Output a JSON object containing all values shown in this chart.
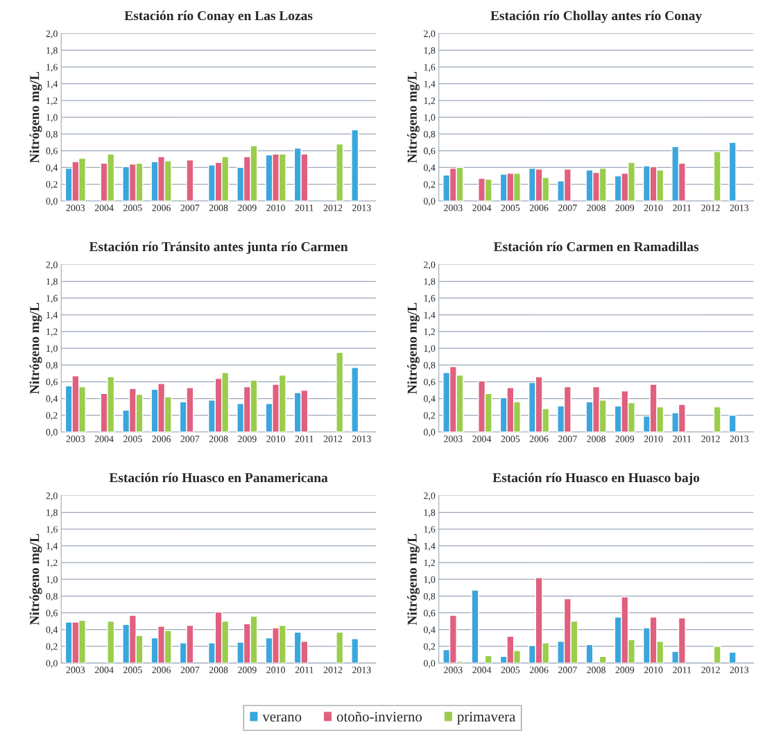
{
  "chart_data": [
    {
      "type": "bar",
      "title": "Estación río Conay en Las Lozas",
      "ylabel": "Nitrógeno mg/L",
      "categories": [
        "2003",
        "2004",
        "2005",
        "2006",
        "2007",
        "2008",
        "2009",
        "2010",
        "2011",
        "2012",
        "2013"
      ],
      "series": [
        {
          "color": "#3aa6dd",
          "values": [
            0.39,
            null,
            0.41,
            0.47,
            null,
            0.43,
            0.4,
            0.55,
            0.63,
            null,
            0.85
          ]
        },
        {
          "color": "#e0607e",
          "values": [
            0.47,
            0.45,
            0.44,
            0.53,
            0.49,
            0.46,
            0.53,
            0.56,
            0.56,
            null,
            null
          ]
        },
        {
          "color": "#9acd4c",
          "values": [
            0.51,
            0.56,
            0.45,
            0.48,
            null,
            0.53,
            0.66,
            0.56,
            null,
            0.68,
            null
          ]
        }
      ],
      "ylim": [
        0,
        2
      ],
      "yticks": [
        {
          "value": 0,
          "label": "0,0"
        },
        {
          "value": 0.2,
          "label": "0,2"
        },
        {
          "value": 0.4,
          "label": "0,4"
        },
        {
          "value": 0.6,
          "label": "0,6"
        },
        {
          "value": 0.8,
          "label": "0,8"
        },
        {
          "value": 1.0,
          "label": "1,0"
        },
        {
          "value": 1.2,
          "label": "1,2"
        },
        {
          "value": 1.4,
          "label": "1,4"
        },
        {
          "value": 1.6,
          "label": "1,6"
        },
        {
          "value": 1.8,
          "label": "1,8"
        },
        {
          "value": 2.0,
          "label": "2,0"
        }
      ],
      "grid": "y"
    },
    {
      "type": "bar",
      "title": "Estación río Chollay antes río Conay",
      "ylabel": "Nitrógeno mg/L",
      "categories": [
        "2003",
        "2004",
        "2005",
        "2006",
        "2007",
        "2008",
        "2009",
        "2010",
        "2011",
        "2012",
        "2013"
      ],
      "series": [
        {
          "color": "#3aa6dd",
          "values": [
            0.31,
            null,
            0.32,
            0.39,
            0.24,
            0.37,
            0.3,
            0.42,
            0.65,
            null,
            0.7
          ]
        },
        {
          "color": "#e0607e",
          "values": [
            0.39,
            0.27,
            0.33,
            0.38,
            0.38,
            0.34,
            0.33,
            0.41,
            0.45,
            null,
            null
          ]
        },
        {
          "color": "#9acd4c",
          "values": [
            0.4,
            0.26,
            0.33,
            0.28,
            null,
            0.39,
            0.46,
            0.37,
            null,
            0.59,
            null
          ]
        }
      ],
      "ylim": [
        0,
        2
      ],
      "yticks": [
        {
          "value": 0,
          "label": "0,0"
        },
        {
          "value": 0.2,
          "label": "0,2"
        },
        {
          "value": 0.4,
          "label": "0,4"
        },
        {
          "value": 0.6,
          "label": "0,6"
        },
        {
          "value": 0.8,
          "label": "0,8"
        },
        {
          "value": 1.0,
          "label": "1,0"
        },
        {
          "value": 1.2,
          "label": "1,2"
        },
        {
          "value": 1.4,
          "label": "1,4"
        },
        {
          "value": 1.6,
          "label": "1,6"
        },
        {
          "value": 1.8,
          "label": "1,8"
        },
        {
          "value": 2.0,
          "label": "2,0"
        }
      ],
      "grid": "y"
    },
    {
      "type": "bar",
      "title": "Estación río Tránsito antes junta río Carmen",
      "ylabel": "Nitrógeno mg/L",
      "categories": [
        "2003",
        "2004",
        "2005",
        "2006",
        "2007",
        "2008",
        "2009",
        "2010",
        "2011",
        "2012",
        "2013"
      ],
      "series": [
        {
          "color": "#3aa6dd",
          "values": [
            0.55,
            null,
            0.26,
            0.51,
            0.36,
            0.38,
            0.34,
            0.34,
            0.47,
            null,
            0.77
          ]
        },
        {
          "color": "#e0607e",
          "values": [
            0.67,
            0.46,
            0.52,
            0.58,
            0.53,
            0.64,
            0.54,
            0.57,
            0.5,
            null,
            null
          ]
        },
        {
          "color": "#9acd4c",
          "values": [
            0.54,
            0.66,
            0.45,
            0.42,
            null,
            0.71,
            0.62,
            0.68,
            null,
            0.95,
            null
          ]
        }
      ],
      "ylim": [
        0,
        2
      ],
      "yticks": [
        {
          "value": 0,
          "label": "0,0"
        },
        {
          "value": 0.2,
          "label": "0,2"
        },
        {
          "value": 0.4,
          "label": "0,4"
        },
        {
          "value": 0.6,
          "label": "0,6"
        },
        {
          "value": 0.8,
          "label": "0,8"
        },
        {
          "value": 1.0,
          "label": "1,0"
        },
        {
          "value": 1.2,
          "label": "1,2"
        },
        {
          "value": 1.4,
          "label": "1,4"
        },
        {
          "value": 1.6,
          "label": "1,6"
        },
        {
          "value": 1.8,
          "label": "1,8"
        },
        {
          "value": 2.0,
          "label": "2,0"
        }
      ],
      "grid": "y"
    },
    {
      "type": "bar",
      "title": "Estación río Carmen en Ramadillas",
      "ylabel": "Nitrógeno mg/L",
      "categories": [
        "2003",
        "2004",
        "2005",
        "2006",
        "2007",
        "2008",
        "2009",
        "2010",
        "2011",
        "2012",
        "2013"
      ],
      "series": [
        {
          "color": "#3aa6dd",
          "values": [
            0.71,
            null,
            0.41,
            0.59,
            0.31,
            0.36,
            0.31,
            0.19,
            0.23,
            null,
            0.2
          ]
        },
        {
          "color": "#e0607e",
          "values": [
            0.78,
            0.61,
            0.53,
            0.66,
            0.54,
            0.54,
            0.49,
            0.57,
            0.33,
            null,
            null
          ]
        },
        {
          "color": "#9acd4c",
          "values": [
            0.68,
            0.46,
            0.36,
            0.28,
            null,
            0.38,
            0.35,
            0.3,
            null,
            0.3,
            null
          ]
        }
      ],
      "ylim": [
        0,
        2
      ],
      "yticks": [
        {
          "value": 0,
          "label": "0,0"
        },
        {
          "value": 0.2,
          "label": "0,2"
        },
        {
          "value": 0.4,
          "label": "0,4"
        },
        {
          "value": 0.6,
          "label": "0,6"
        },
        {
          "value": 0.8,
          "label": "0,8"
        },
        {
          "value": 1.0,
          "label": "1,0"
        },
        {
          "value": 1.2,
          "label": "1,2"
        },
        {
          "value": 1.4,
          "label": "1,4"
        },
        {
          "value": 1.6,
          "label": "1,6"
        },
        {
          "value": 1.8,
          "label": "1,8"
        },
        {
          "value": 2.0,
          "label": "2,0"
        }
      ],
      "grid": "y"
    },
    {
      "type": "bar",
      "title": "Estación río Huasco en Panamericana",
      "ylabel": "Nitrógeno mg/L",
      "categories": [
        "2003",
        "2004",
        "2005",
        "2006",
        "2007",
        "2008",
        "2009",
        "2010",
        "2011",
        "2012",
        "2013"
      ],
      "series": [
        {
          "color": "#3aa6dd",
          "values": [
            0.49,
            null,
            0.46,
            0.3,
            0.24,
            0.24,
            0.25,
            0.3,
            0.37,
            null,
            0.29
          ]
        },
        {
          "color": "#e0607e",
          "values": [
            0.49,
            null,
            0.57,
            0.44,
            0.45,
            0.61,
            0.47,
            0.42,
            0.26,
            null,
            null
          ]
        },
        {
          "color": "#9acd4c",
          "values": [
            0.51,
            0.5,
            0.33,
            0.39,
            null,
            0.5,
            0.56,
            0.45,
            null,
            0.37,
            null
          ]
        }
      ],
      "ylim": [
        0,
        2
      ],
      "yticks": [
        {
          "value": 0,
          "label": "0,0"
        },
        {
          "value": 0.2,
          "label": "0,2"
        },
        {
          "value": 0.4,
          "label": "0,4"
        },
        {
          "value": 0.6,
          "label": "0,6"
        },
        {
          "value": 0.8,
          "label": "0,8"
        },
        {
          "value": 1.0,
          "label": "1,0"
        },
        {
          "value": 1.2,
          "label": "1,2"
        },
        {
          "value": 1.4,
          "label": "1,4"
        },
        {
          "value": 1.6,
          "label": "1,6"
        },
        {
          "value": 1.8,
          "label": "1,8"
        },
        {
          "value": 2.0,
          "label": "2,0"
        }
      ],
      "grid": "y"
    },
    {
      "type": "bar",
      "title": "Estación río Huasco en Huasco bajo",
      "ylabel": "Nitrógeno mg/L",
      "categories": [
        "2003",
        "2004",
        "2005",
        "2006",
        "2007",
        "2008",
        "2009",
        "2010",
        "2011",
        "2012",
        "2013"
      ],
      "series": [
        {
          "name": "verano",
          "color": "#3aa6dd",
          "values": [
            0.16,
            0.87,
            0.08,
            0.21,
            0.26,
            0.22,
            0.55,
            0.42,
            0.14,
            null,
            0.13
          ]
        },
        {
          "name": "otoño-invierno",
          "color": "#e0607e",
          "values": [
            0.57,
            null,
            0.32,
            1.02,
            0.77,
            null,
            0.79,
            0.55,
            0.54,
            null,
            null
          ]
        },
        {
          "name": "primavera",
          "color": "#9acd4c",
          "values": [
            0.02,
            0.09,
            0.15,
            0.24,
            0.5,
            0.08,
            0.28,
            0.26,
            null,
            0.2,
            null
          ]
        }
      ],
      "ylim": [
        0,
        2
      ],
      "yticks": [
        {
          "value": 0,
          "label": "0,0"
        },
        {
          "value": 0.2,
          "label": "0,2"
        },
        {
          "value": 0.4,
          "label": "0,4"
        },
        {
          "value": 0.6,
          "label": "0,6"
        },
        {
          "value": 0.8,
          "label": "0,8"
        },
        {
          "value": 1.0,
          "label": "1,0"
        },
        {
          "value": 1.2,
          "label": "1,2"
        },
        {
          "value": 1.4,
          "label": "1,4"
        },
        {
          "value": 1.6,
          "label": "1,6"
        },
        {
          "value": 1.8,
          "label": "1,8"
        },
        {
          "value": 2.0,
          "label": "2,0"
        }
      ],
      "grid": "y",
      "legend": "bottom"
    }
  ]
}
